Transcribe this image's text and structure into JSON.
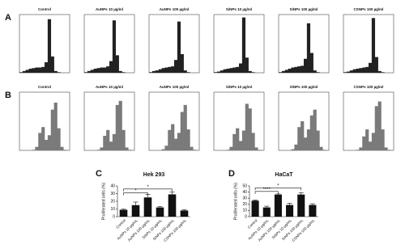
{
  "panel_labels": [
    "A",
    "B",
    "C",
    "D"
  ],
  "chart_data": [
    {
      "type": "histogram",
      "title": "Control",
      "bins": [
        0,
        10,
        20,
        30,
        40,
        50,
        60,
        70,
        80,
        90,
        100,
        110,
        120,
        130,
        140,
        150,
        160
      ],
      "values": [
        1,
        3,
        5,
        7,
        8,
        9,
        9,
        10,
        18,
        92,
        28,
        3,
        1,
        0,
        0,
        0
      ],
      "xlim": [
        0,
        160
      ],
      "ylim": [
        0,
        100
      ],
      "color": "#222222"
    },
    {
      "type": "histogram",
      "title": "AuNPs 10 µg/ml",
      "bins": [
        0,
        10,
        20,
        30,
        40,
        50,
        60,
        70,
        80,
        90,
        100,
        110,
        120,
        130,
        140,
        150,
        160
      ],
      "values": [
        1,
        3,
        5,
        7,
        8,
        9,
        9,
        11,
        20,
        90,
        30,
        3,
        1,
        0,
        0,
        0
      ],
      "xlim": [
        0,
        160
      ],
      "ylim": [
        0,
        100
      ],
      "color": "#222222"
    },
    {
      "type": "histogram",
      "title": "AuNPs 100 µg/ml",
      "bins": [
        0,
        10,
        20,
        30,
        40,
        50,
        60,
        70,
        80,
        90,
        100,
        110,
        120,
        130,
        140,
        150,
        160
      ],
      "values": [
        1,
        3,
        4,
        6,
        8,
        9,
        10,
        11,
        22,
        88,
        32,
        4,
        1,
        0,
        0,
        0
      ],
      "xlim": [
        0,
        160
      ],
      "ylim": [
        0,
        100
      ],
      "color": "#222222"
    },
    {
      "type": "histogram",
      "title": "SiNPs 10 µg/ml",
      "bins": [
        0,
        10,
        20,
        30,
        40,
        50,
        60,
        70,
        80,
        90,
        100,
        110,
        120,
        130,
        140,
        150,
        160
      ],
      "values": [
        1,
        2,
        4,
        6,
        7,
        8,
        9,
        10,
        16,
        95,
        26,
        3,
        1,
        0,
        0,
        0
      ],
      "xlim": [
        0,
        160
      ],
      "ylim": [
        0,
        100
      ],
      "color": "#222222"
    },
    {
      "type": "histogram",
      "title": "SiNPs 100 µg/ml",
      "bins": [
        0,
        10,
        20,
        30,
        40,
        50,
        60,
        70,
        80,
        90,
        100,
        110,
        120,
        130,
        140,
        150,
        160
      ],
      "values": [
        1,
        3,
        5,
        7,
        9,
        10,
        11,
        12,
        24,
        85,
        34,
        4,
        1,
        0,
        0,
        0
      ],
      "xlim": [
        0,
        160
      ],
      "ylim": [
        0,
        100
      ],
      "color": "#222222"
    },
    {
      "type": "histogram",
      "title": "CSNPs 100 µg/ml",
      "bins": [
        0,
        10,
        20,
        30,
        40,
        50,
        60,
        70,
        80,
        90,
        100,
        110,
        120,
        130,
        140,
        150,
        160
      ],
      "values": [
        1,
        2,
        4,
        6,
        7,
        8,
        9,
        10,
        17,
        94,
        27,
        3,
        1,
        0,
        0,
        0
      ],
      "xlim": [
        0,
        160
      ],
      "ylim": [
        0,
        100
      ],
      "color": "#222222"
    },
    {
      "type": "histogram",
      "title": "Control",
      "bins": [
        0,
        10,
        20,
        30,
        40,
        50,
        60,
        70,
        80,
        90,
        100,
        110,
        120,
        130,
        140,
        150,
        160
      ],
      "values": [
        0,
        0,
        0,
        0,
        1,
        6,
        30,
        40,
        18,
        26,
        70,
        82,
        38,
        6,
        1,
        0
      ],
      "xlim": [
        0,
        160
      ],
      "ylim": [
        0,
        100
      ],
      "color": "#7a7a7a"
    },
    {
      "type": "histogram",
      "title": "AuNPs 10 µg/ml",
      "bins": [
        0,
        10,
        20,
        30,
        40,
        50,
        60,
        70,
        80,
        90,
        100,
        110,
        120,
        130,
        140,
        150,
        160
      ],
      "values": [
        0,
        0,
        0,
        0,
        1,
        5,
        25,
        35,
        15,
        28,
        78,
        85,
        35,
        5,
        1,
        0
      ],
      "xlim": [
        0,
        160
      ],
      "ylim": [
        0,
        100
      ],
      "color": "#7a7a7a"
    },
    {
      "type": "histogram",
      "title": "AuNPs 100 µg/ml",
      "bins": [
        0,
        10,
        20,
        30,
        40,
        50,
        60,
        70,
        80,
        90,
        100,
        110,
        120,
        130,
        140,
        150,
        160
      ],
      "values": [
        0,
        0,
        0,
        0,
        2,
        8,
        35,
        45,
        20,
        30,
        66,
        78,
        36,
        6,
        1,
        0
      ],
      "xlim": [
        0,
        160
      ],
      "ylim": [
        0,
        100
      ],
      "color": "#7a7a7a"
    },
    {
      "type": "histogram",
      "title": "SiNPs 10 µg/ml",
      "bins": [
        0,
        10,
        20,
        30,
        40,
        50,
        60,
        70,
        80,
        90,
        100,
        110,
        120,
        130,
        140,
        150,
        160
      ],
      "values": [
        0,
        0,
        0,
        0,
        1,
        6,
        28,
        38,
        16,
        34,
        80,
        72,
        30,
        5,
        1,
        0
      ],
      "xlim": [
        0,
        160
      ],
      "ylim": [
        0,
        100
      ],
      "color": "#7a7a7a"
    },
    {
      "type": "histogram",
      "title": "SiNPs 100 µg/ml",
      "bins": [
        0,
        10,
        20,
        30,
        40,
        50,
        60,
        70,
        80,
        90,
        100,
        110,
        120,
        130,
        140,
        150,
        160
      ],
      "values": [
        0,
        0,
        0,
        0,
        2,
        10,
        40,
        50,
        22,
        36,
        60,
        70,
        34,
        6,
        1,
        0
      ],
      "xlim": [
        0,
        160
      ],
      "ylim": [
        0,
        100
      ],
      "color": "#7a7a7a"
    },
    {
      "type": "histogram",
      "title": "CSNPs 100 µg/ml",
      "bins": [
        0,
        10,
        20,
        30,
        40,
        50,
        60,
        70,
        80,
        90,
        100,
        110,
        120,
        130,
        140,
        150,
        160
      ],
      "values": [
        0,
        0,
        0,
        0,
        1,
        5,
        24,
        36,
        15,
        30,
        76,
        84,
        36,
        5,
        1,
        0
      ],
      "xlim": [
        0,
        160
      ],
      "ylim": [
        0,
        100
      ],
      "color": "#7a7a7a"
    },
    {
      "type": "bar",
      "title": "Hek 293",
      "y_label": "Proliferated cells (%)",
      "categories": [
        "Control",
        "AuNPs 10 µg/mL",
        "AuNPs 100 µg/mL",
        "SiNPs 10 µg/mL",
        "SiNPs 100 µg/mL",
        "CSNPs 100 µg/mL"
      ],
      "values": [
        9,
        15,
        25,
        12,
        29,
        8
      ],
      "errors": [
        1,
        4,
        4,
        1,
        3,
        1
      ],
      "ylim": [
        0,
        40
      ],
      "yticks": [
        0,
        10,
        20,
        30,
        40
      ],
      "color": "#111111",
      "annotations": [
        {
          "text": "*",
          "from": 0,
          "to": 2,
          "y": 31
        },
        {
          "text": "*",
          "from": 0,
          "to": 4,
          "y": 36
        }
      ]
    },
    {
      "type": "bar",
      "title": "HaCaT",
      "y_label": "Proliferated cells (%)",
      "categories": [
        "Control",
        "AuNPs 10 µg/mL",
        "AuNPs 100 µg/mL",
        "SiNPs 10 µg/mL",
        "SiNPs 100 µg/mL",
        "CSNPs 100 µg/mL"
      ],
      "values": [
        26,
        15,
        36,
        19,
        36,
        19
      ],
      "errors": [
        1,
        2,
        1,
        3,
        3,
        2
      ],
      "ylim": [
        0,
        50
      ],
      "yticks": [
        0,
        10,
        20,
        30,
        40,
        50
      ],
      "color": "#111111",
      "annotations": [
        {
          "text": "****",
          "from": 0,
          "to": 2,
          "y": 41
        },
        {
          "text": "*",
          "from": 0,
          "to": 4,
          "y": 47
        }
      ]
    }
  ]
}
